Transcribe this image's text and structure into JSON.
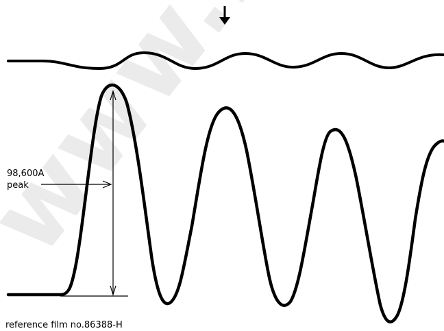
{
  "annotation": {
    "line1": "98,600A",
    "line2": "peak"
  },
  "caption": "reference film no.86388-H",
  "watermark": "www.Elec",
  "colors": {
    "ink": "#000000",
    "background": "#ffffff"
  }
}
